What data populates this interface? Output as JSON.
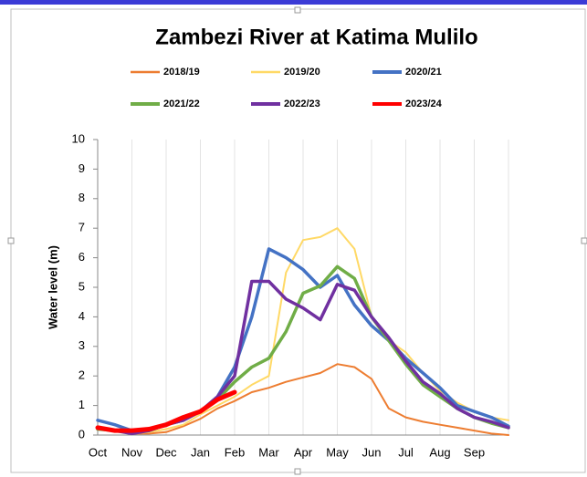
{
  "chart_data": {
    "type": "line",
    "title": "Zambezi River at Katima Mulilo",
    "y_label": "Water level (m)",
    "categories": [
      "Oct",
      null,
      "Nov",
      null,
      "Dec",
      null,
      "Jan",
      null,
      "Feb",
      null,
      "Mar",
      null,
      "Apr",
      null,
      "May",
      null,
      "Jun",
      null,
      "Jul",
      null,
      "Aug",
      null,
      "Sep",
      null,
      null
    ],
    "series": [
      {
        "name": "2018/19",
        "color": "#ed7d31",
        "values": [
          0.25,
          0.15,
          0.05,
          0.05,
          0.1,
          0.3,
          0.55,
          0.9,
          1.15,
          1.45,
          1.6,
          1.8,
          1.95,
          2.1,
          2.4,
          2.3,
          1.9,
          0.9,
          0.6,
          0.45,
          0.35,
          0.25,
          0.15,
          0.05,
          0
        ]
      },
      {
        "name": "2019/20",
        "color": "#ffd966",
        "values": [
          0.3,
          0.15,
          0.05,
          0.1,
          0.2,
          0.35,
          0.7,
          1.0,
          1.3,
          1.7,
          2.0,
          5.5,
          6.6,
          6.7,
          7.0,
          6.3,
          4.0,
          3.2,
          2.8,
          2.1,
          1.5,
          1.1,
          0.8,
          0.6,
          0.5
        ]
      },
      {
        "name": "2020/21",
        "color": "#4472c4",
        "values": [
          0.5,
          0.35,
          0.15,
          0.2,
          0.35,
          0.5,
          0.8,
          1.3,
          2.3,
          4.0,
          6.3,
          6.0,
          5.6,
          5.0,
          5.4,
          4.4,
          3.7,
          3.2,
          2.6,
          2.1,
          1.6,
          1.0,
          0.8,
          0.6,
          0.3
        ]
      },
      {
        "name": "2021/22",
        "color": "#70ad47",
        "values": [
          0.2,
          0.15,
          0.1,
          0.15,
          0.35,
          0.5,
          0.8,
          1.2,
          1.8,
          2.3,
          2.6,
          3.5,
          4.8,
          5.05,
          5.7,
          5.3,
          4.0,
          3.2,
          2.4,
          1.7,
          1.3,
          0.9,
          0.6,
          0.4,
          0.25
        ]
      },
      {
        "name": "2022/23",
        "color": "#7030a0",
        "values": [
          0.25,
          0.15,
          0.05,
          0.15,
          0.35,
          0.5,
          0.8,
          1.3,
          2.0,
          5.2,
          5.2,
          4.6,
          4.3,
          3.9,
          5.1,
          4.9,
          4.0,
          3.3,
          2.5,
          1.8,
          1.4,
          0.9,
          0.6,
          0.45,
          0.25
        ]
      },
      {
        "name": "2023/24",
        "color": "#ff0000",
        "values": [
          0.25,
          0.15,
          0.15,
          0.2,
          0.35,
          0.6,
          0.8,
          1.2,
          1.45,
          null,
          null,
          null,
          null,
          null,
          null,
          null,
          null,
          null,
          null,
          null,
          null,
          null,
          null,
          null,
          null
        ]
      }
    ],
    "ylim": [
      0,
      10
    ],
    "yticks": [
      0,
      1,
      2,
      3,
      4,
      5,
      6,
      7,
      8,
      9,
      10
    ],
    "grid": true
  }
}
